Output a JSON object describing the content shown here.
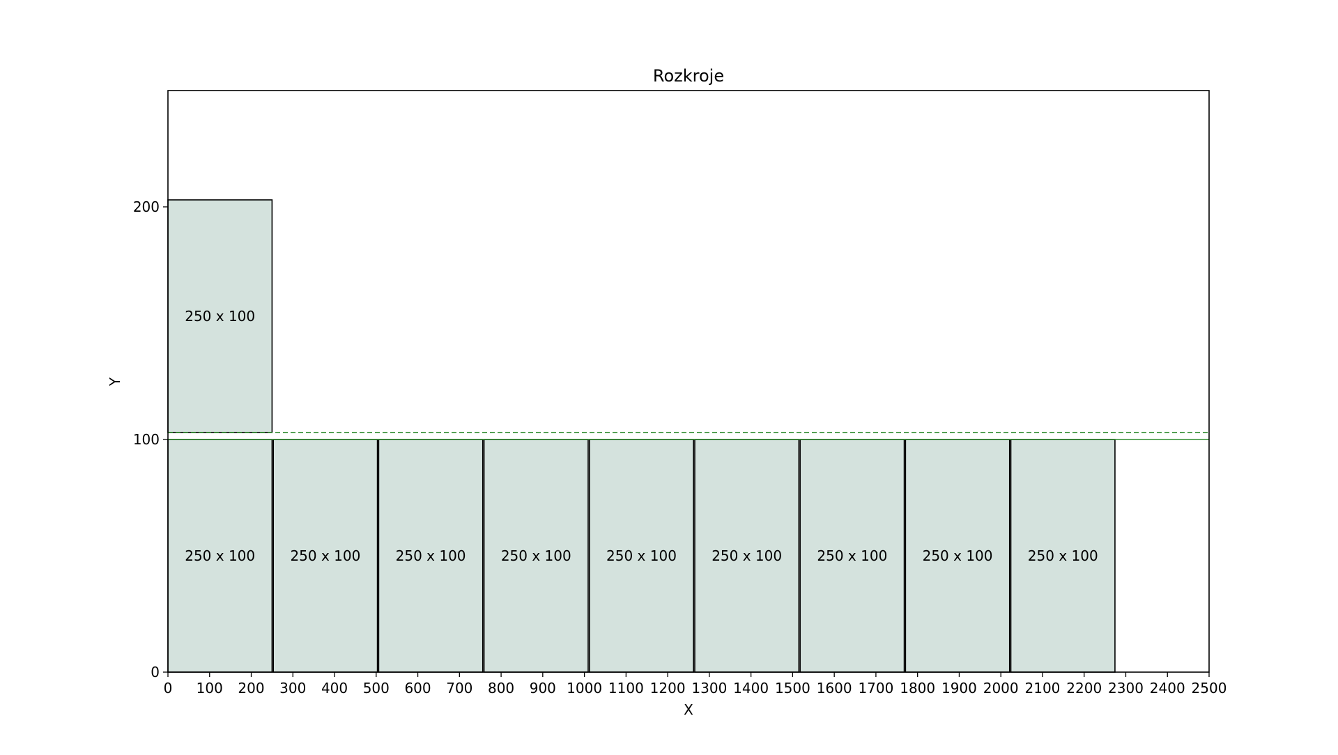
{
  "chart_data": {
    "type": "bar",
    "title": "Rozkroje",
    "xlabel": "X",
    "ylabel": "Y",
    "xlim": [
      0,
      2500
    ],
    "ylim": [
      0,
      250
    ],
    "xticks": [
      0,
      100,
      200,
      300,
      400,
      500,
      600,
      700,
      800,
      900,
      1000,
      1100,
      1200,
      1300,
      1400,
      1500,
      1600,
      1700,
      1800,
      1900,
      2000,
      2100,
      2200,
      2300,
      2400,
      2500
    ],
    "yticks": [
      0,
      100,
      200
    ],
    "grid": false,
    "rects": [
      {
        "x": 0,
        "y": 0,
        "width": 250,
        "height": 100,
        "label": "250 x 100"
      },
      {
        "x": 253,
        "y": 0,
        "width": 250,
        "height": 100,
        "label": "250 x 100"
      },
      {
        "x": 506,
        "y": 0,
        "width": 250,
        "height": 100,
        "label": "250 x 100"
      },
      {
        "x": 759,
        "y": 0,
        "width": 250,
        "height": 100,
        "label": "250 x 100"
      },
      {
        "x": 1012,
        "y": 0,
        "width": 250,
        "height": 100,
        "label": "250 x 100"
      },
      {
        "x": 1265,
        "y": 0,
        "width": 250,
        "height": 100,
        "label": "250 x 100"
      },
      {
        "x": 1518,
        "y": 0,
        "width": 250,
        "height": 100,
        "label": "250 x 100"
      },
      {
        "x": 1771,
        "y": 0,
        "width": 250,
        "height": 100,
        "label": "250 x 100"
      },
      {
        "x": 2024,
        "y": 0,
        "width": 250,
        "height": 100,
        "label": "250 x 100"
      },
      {
        "x": 0,
        "y": 103,
        "width": 250,
        "height": 100,
        "label": "250 x 100"
      }
    ],
    "reference_lines": [
      {
        "y": 100,
        "style": "solid"
      },
      {
        "y": 103,
        "style": "dashed"
      }
    ],
    "colors": {
      "rect_fill": "#d4e2dd",
      "rect_edge": "#000000",
      "ref_line": "#2e8b2e"
    }
  }
}
